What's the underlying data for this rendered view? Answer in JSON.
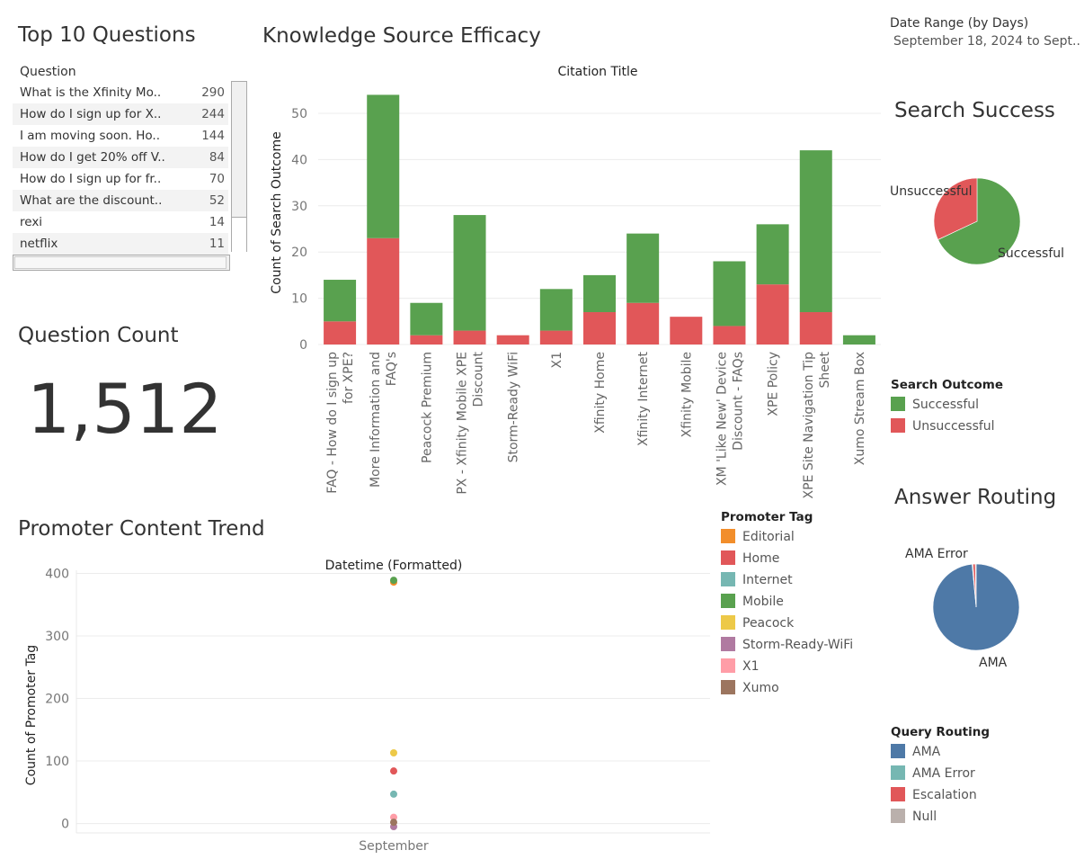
{
  "top_questions": {
    "title": "Top 10 Questions",
    "column_header": "Question",
    "rows": [
      {
        "question": "What is the Xfinity Mo..",
        "count": "290"
      },
      {
        "question": "How do I sign up for X..",
        "count": "244"
      },
      {
        "question": "I am moving soon. Ho..",
        "count": "144"
      },
      {
        "question": "How do I get 20% off V..",
        "count": "84"
      },
      {
        "question": "How do I sign up for fr..",
        "count": "70"
      },
      {
        "question": "What are the discount..",
        "count": "52"
      },
      {
        "question": "rexi",
        "count": "14"
      },
      {
        "question": "netflix",
        "count": "11"
      }
    ]
  },
  "question_count": {
    "title": "Question Count",
    "value": "1,512"
  },
  "date_range": {
    "label": "Date Range (by Days)",
    "value": "September 18, 2024 to Sept.."
  },
  "colors": {
    "successful": "#59a14f",
    "unsuccessful": "#e15759",
    "editorial": "#f28e2b",
    "home": "#e15759",
    "internet": "#76b7b2",
    "mobile": "#59a14f",
    "peacock": "#edc948",
    "storm": "#b07aa1",
    "x1": "#ff9da7",
    "xumo": "#9c755f",
    "ama": "#4e79a7",
    "ama_error": "#76b7b2",
    "escalation": "#e15759",
    "null": "#bab0ac"
  },
  "chart_data": [
    {
      "type": "bar",
      "stacked": true,
      "title": "Knowledge Source Efficacy",
      "subtitle": "Citation Title",
      "ylabel": "Count of Search Outcome",
      "xlabel": "",
      "ylim": [
        0,
        57
      ],
      "yticks": [
        0,
        10,
        20,
        30,
        40,
        50
      ],
      "grid": true,
      "categories": [
        [
          "FAQ - How do I sign up",
          "for XPE?"
        ],
        [
          "More Information and",
          "FAQ's"
        ],
        [
          "Peacock Premium"
        ],
        [
          "PX - Xfinity Mobile XPE",
          "Discount"
        ],
        [
          "Storm-Ready WiFi"
        ],
        [
          "X1"
        ],
        [
          "Xfinity Home"
        ],
        [
          "Xfinity Internet"
        ],
        [
          "Xfinity Mobile"
        ],
        [
          "XM 'Like New' Device",
          "Discount - FAQs"
        ],
        [
          "XPE Policy"
        ],
        [
          "XPE Site Navigation Tip",
          "Sheet"
        ],
        [
          "Xumo Stream Box"
        ]
      ],
      "series": [
        {
          "name": "Unsuccessful",
          "values": [
            5,
            23,
            2,
            3,
            2,
            3,
            7,
            9,
            6,
            4,
            13,
            7,
            0
          ]
        },
        {
          "name": "Successful",
          "values": [
            9,
            31,
            7,
            25,
            0,
            9,
            8,
            15,
            0,
            14,
            13,
            35,
            2
          ]
        }
      ],
      "legend": {
        "title": "Search Outcome",
        "position": "right",
        "items": [
          "Successful",
          "Unsuccessful"
        ]
      }
    },
    {
      "type": "pie",
      "title": "Search Success",
      "slices": [
        {
          "label": "Successful",
          "value": 68
        },
        {
          "label": "Unsuccessful",
          "value": 32
        }
      ]
    },
    {
      "type": "pie",
      "title": "Answer Routing",
      "slices": [
        {
          "label": "AMA",
          "value": 98.5
        },
        {
          "label": "AMA Error",
          "value": 0.3
        },
        {
          "label": "Escalation",
          "value": 0.9
        },
        {
          "label": "Null",
          "value": 0.3
        }
      ],
      "legend": {
        "title": "Query Routing",
        "position": "right",
        "items": [
          "AMA",
          "AMA Error",
          "Escalation",
          "Null"
        ]
      }
    },
    {
      "type": "scatter",
      "title": "Promoter Content Trend",
      "subtitle": "Datetime (Formatted)",
      "ylabel": "Count of Promoter Tag",
      "xlabel": "",
      "categories": [
        "September"
      ],
      "ylim": [
        -15,
        405
      ],
      "yticks": [
        0,
        100,
        200,
        300,
        400
      ],
      "grid": true,
      "series": [
        {
          "name": "Editorial",
          "values": [
            386
          ]
        },
        {
          "name": "Home",
          "values": [
            84
          ]
        },
        {
          "name": "Internet",
          "values": [
            47
          ]
        },
        {
          "name": "Mobile",
          "values": [
            389
          ]
        },
        {
          "name": "Peacock",
          "values": [
            113
          ]
        },
        {
          "name": "Storm-Ready-WiFi",
          "values": [
            -5
          ]
        },
        {
          "name": "X1",
          "values": [
            10
          ]
        },
        {
          "name": "Xumo",
          "values": [
            2
          ]
        }
      ],
      "legend": {
        "title": "Promoter Tag",
        "position": "right",
        "items": [
          "Editorial",
          "Home",
          "Internet",
          "Mobile",
          "Peacock",
          "Storm-Ready-WiFi",
          "X1",
          "Xumo"
        ]
      }
    }
  ]
}
